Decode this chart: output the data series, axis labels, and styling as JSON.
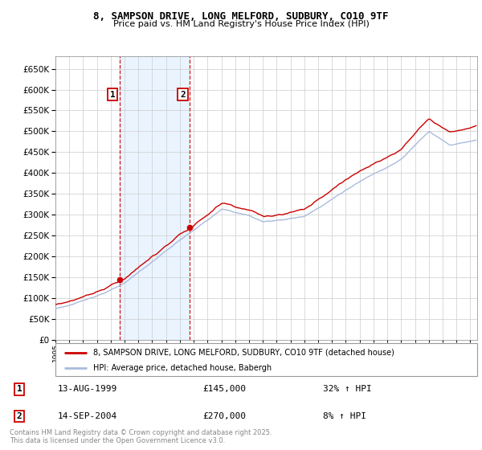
{
  "title_line1": "8, SAMPSON DRIVE, LONG MELFORD, SUDBURY, CO10 9TF",
  "title_line2": "Price paid vs. HM Land Registry's House Price Index (HPI)",
  "legend_line1": "8, SAMPSON DRIVE, LONG MELFORD, SUDBURY, CO10 9TF (detached house)",
  "legend_line2": "HPI: Average price, detached house, Babergh",
  "annotation1_date": "13-AUG-1999",
  "annotation1_price": "£145,000",
  "annotation1_hpi": "32% ↑ HPI",
  "annotation2_date": "14-SEP-2004",
  "annotation2_price": "£270,000",
  "annotation2_hpi": "8% ↑ HPI",
  "footer": "Contains HM Land Registry data © Crown copyright and database right 2025.\nThis data is licensed under the Open Government Licence v3.0.",
  "ylim": [
    0,
    680000
  ],
  "yticks": [
    0,
    50000,
    100000,
    150000,
    200000,
    250000,
    300000,
    350000,
    400000,
    450000,
    500000,
    550000,
    600000,
    650000
  ],
  "red_color": "#cc0000",
  "blue_color": "#aabbdd",
  "shade_color": "#ddeeff",
  "grid_color": "#cccccc",
  "purchase1_year": 1999.62,
  "purchase2_year": 2004.71,
  "purchase1_price": 145000,
  "purchase2_price": 270000,
  "xmin": 1995,
  "xmax": 2025.5
}
